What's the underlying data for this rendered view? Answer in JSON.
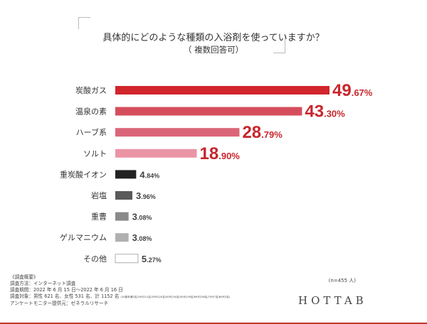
{
  "title": "具体的にどのような種類の入浴剤を使っていますか？",
  "subtitle": "（ 複数回答可）",
  "chart_data": {
    "type": "bar",
    "orientation": "horizontal",
    "categories": [
      "炭酸ガス",
      "温泉の素",
      "ハーブ系",
      "ソルト",
      "重炭酸イオン",
      "岩塩",
      "重曹",
      "ゲルマニウム",
      "その他"
    ],
    "values": [
      49.67,
      43.3,
      28.79,
      18.9,
      4.84,
      3.96,
      3.08,
      3.08,
      5.27
    ],
    "labels": [
      [
        "49",
        ".67%"
      ],
      [
        "43",
        ".30%"
      ],
      [
        "28",
        ".79%"
      ],
      [
        "18",
        ".90%"
      ],
      [
        "4",
        ".84%"
      ],
      [
        "3",
        ".96%"
      ],
      [
        "3",
        ".08%"
      ],
      [
        "3",
        ".08%"
      ],
      [
        "5",
        ".27%"
      ]
    ],
    "colors": [
      "#d0262c",
      "#d54d5c",
      "#db6578",
      "#ea94a6",
      "#222222",
      "#5a5a5a",
      "#8a8a8a",
      "#b0b0b0",
      "#ffffff"
    ],
    "label_colors": [
      "#c8262c",
      "#c8262c",
      "#c8262c",
      "#c8262c",
      "#444444",
      "#444444",
      "#444444",
      "#444444",
      "#444444"
    ],
    "grid": false,
    "legend": "none"
  },
  "footer": {
    "heading": "《調査概要》",
    "method": "調査方法：インターネット調査",
    "period": "調査期間：2022 年 6 月 15 日〜2022 年 6 月 16 日",
    "target": "調査対象：男性 621 名、女性 531 名、計 1152 名",
    "target_detail": "(20歳未満2名/20代211名/30代220名/40代234名/50代239名/60代236名/70代7名/80代3名)",
    "provider": "アンケートモニター提供元：ゼネラルリサーチ",
    "n": "(n=455 人)",
    "logo": "HOTTAB"
  }
}
